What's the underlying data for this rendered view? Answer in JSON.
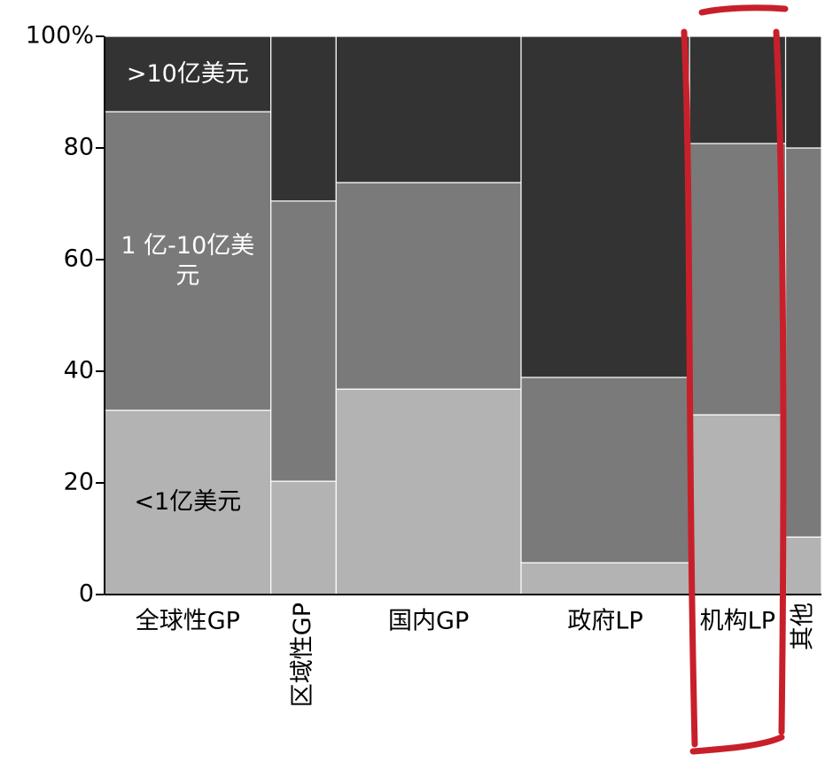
{
  "chart_data": {
    "type": "marimekko",
    "categories": [
      "全球性GP",
      "区域性GP",
      "国内GP",
      "政府LP",
      "机构LP",
      "其他"
    ],
    "widths": [
      23.2,
      9.1,
      25.8,
      23.5,
      13.4,
      5.0
    ],
    "series": [
      {
        "name": "<1亿美元",
        "color": "#b3b3b3",
        "values": [
          33.0,
          20.3,
          36.8,
          5.7,
          32.2,
          10.3
        ]
      },
      {
        "name": "1 亿-10亿美元",
        "color": "#7a7a7a",
        "values": [
          53.5,
          50.2,
          37.0,
          33.2,
          48.6,
          69.7
        ]
      },
      {
        "name": ">10亿美元",
        "color": "#333333",
        "values": [
          13.5,
          29.5,
          26.2,
          61.1,
          19.2,
          20.0
        ]
      }
    ],
    "ylim": [
      0,
      100
    ],
    "yticks": [
      0,
      20,
      40,
      60,
      80,
      {
        "value": 100,
        "label": "100%"
      }
    ]
  }
}
